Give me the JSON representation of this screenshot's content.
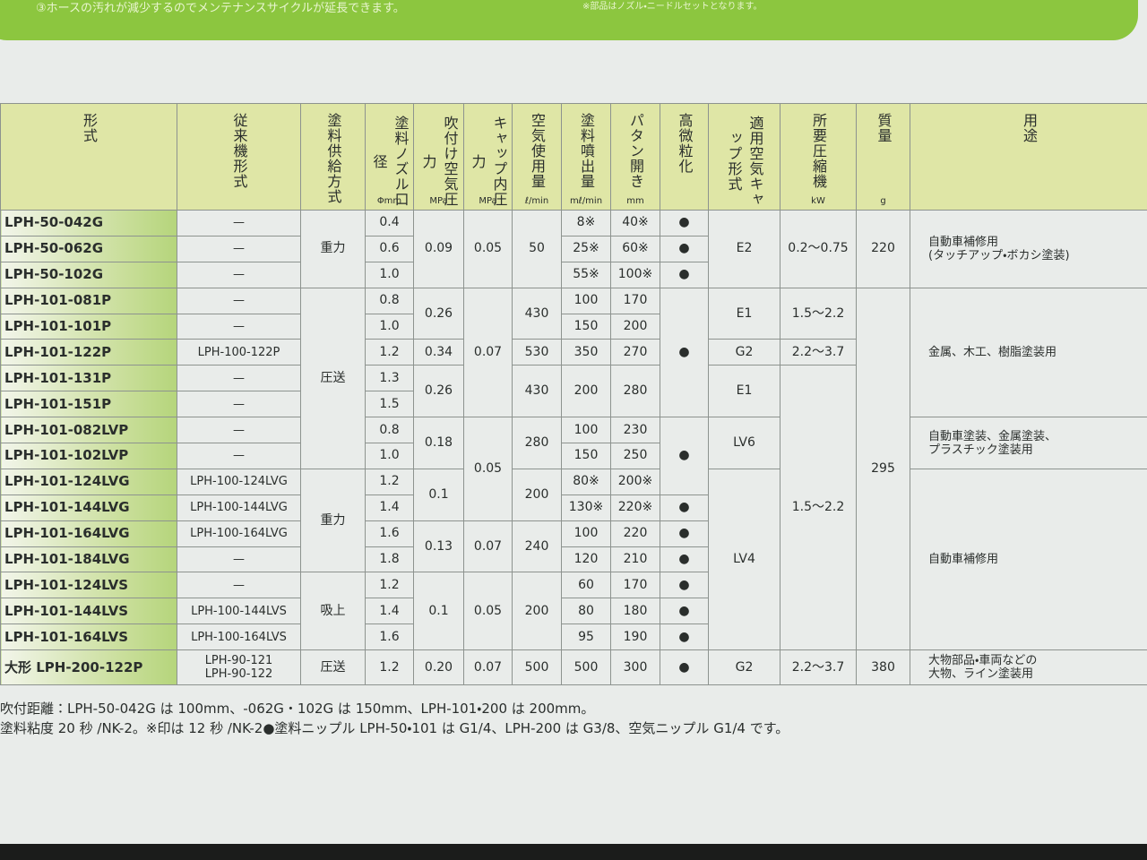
{
  "banner": {
    "left": "③ホースの汚れが減少するのでメンテナンスサイクルが延長できます。",
    "right": "※部品はノズル・ニードルセットとなります。"
  },
  "table": {
    "header": [
      {
        "name": "形式"
      },
      {
        "name": "従来機形式"
      },
      {
        "name": "塗料供給方式"
      },
      {
        "name": "塗料ノズル口径",
        "unit": "Φmm"
      },
      {
        "name": "吹付け空気圧力",
        "unit": "MPa"
      },
      {
        "name": "キャップ内圧力",
        "unit": "MPa"
      },
      {
        "name": "空気使用量",
        "unit": "ℓ/min"
      },
      {
        "name": "塗料噴出量",
        "unit": "mℓ/min"
      },
      {
        "name": "パタン開き",
        "unit": "mm"
      },
      {
        "name": "高微粒化"
      },
      {
        "name": "適用空気キャップ形式"
      },
      {
        "name": "所要圧縮機",
        "unit": "kW"
      },
      {
        "name": "質量",
        "unit": "g"
      },
      {
        "name": "用途"
      }
    ],
    "rows": [
      [
        "LPH-50-042G",
        "—",
        "重力",
        "0.4",
        "0.09",
        "0.05",
        "50",
        "8※",
        "40※",
        "●",
        "E2",
        "0.2〜0.75",
        "220",
        [
          "自動車補修用",
          "(タッチアップ・ボカシ塗装)"
        ]
      ],
      [
        "LPH-50-062G",
        "—",
        "0.6",
        "25※",
        "60※",
        "●"
      ],
      [
        "LPH-50-102G",
        "—",
        "1.0",
        "55※",
        "100※",
        "●"
      ],
      [
        "LPH-101-081P",
        "—",
        "圧送",
        "0.8",
        "0.26",
        "0.07",
        "430",
        "100",
        "170",
        "●",
        "E1",
        "1.5〜2.2",
        "295",
        "金属、木工、樹脂塗装用"
      ],
      [
        "LPH-101-101P",
        "—",
        "1.0",
        "150",
        "200"
      ],
      [
        "LPH-101-122P",
        "LPH-100-122P",
        "1.2",
        "0.34",
        "530",
        "350",
        "270",
        "G2",
        "2.2〜3.7"
      ],
      [
        "LPH-101-131P",
        "—",
        "1.3",
        "0.26",
        "430",
        "200",
        "280",
        "E1",
        "1.5〜2.2"
      ],
      [
        "LPH-101-151P",
        "—",
        "1.5"
      ],
      [
        "LPH-101-082LVP",
        "—",
        "0.8",
        "0.18",
        "0.05",
        "280",
        "100",
        "230",
        "●",
        "LV6",
        [
          "自動車塗装、金属塗装、",
          "プラスチック塗装用"
        ]
      ],
      [
        "LPH-101-102LVP",
        "—",
        "1.0",
        "150",
        "250"
      ],
      [
        "LPH-101-124LVG",
        "LPH-100-124LVG",
        "重力",
        "1.2",
        "0.1",
        "200",
        "80※",
        "200※",
        "LV4",
        "自動車補修用"
      ],
      [
        "LPH-101-144LVG",
        "LPH-100-144LVG",
        "1.4",
        "130※",
        "220※",
        "●"
      ],
      [
        "LPH-101-164LVG",
        "LPH-100-164LVG",
        "1.6",
        "0.13",
        "0.07",
        "240",
        "100",
        "220",
        "●"
      ],
      [
        "LPH-101-184LVG",
        "—",
        "1.8",
        "120",
        "210",
        "●"
      ],
      [
        "LPH-101-124LVS",
        "—",
        "吸上",
        "1.2",
        "0.1",
        "0.05",
        "200",
        "60",
        "170",
        "●"
      ],
      [
        "LPH-101-144LVS",
        "LPH-100-144LVS",
        "1.4",
        "80",
        "180",
        "●"
      ],
      [
        "LPH-101-164LVS",
        "LPH-100-164LVS",
        "1.6",
        "95",
        "190",
        "●"
      ],
      [
        "大形 LPH-200-122P",
        [
          "LPH-90-121",
          "LPH-90-122"
        ],
        "圧送",
        "1.2",
        "0.20",
        "0.07",
        "500",
        "500",
        "300",
        "●",
        "G2",
        "2.2〜3.7",
        "380",
        [
          "大物部品・車両などの",
          "大物、ライン塗装用"
        ]
      ]
    ]
  },
  "notes": [
    "吹付距離：LPH-50-042G は 100mm、-062G・102G は 150mm、LPH-101・200 は 200mm。",
    "塗料粘度 20 秒 /NK-2。※印は 12 秒 /NK-2●塗料ニップル LPH-50・101 は G1/4、LPH-200 は G3/8、空気ニップル G1/4 です。"
  ]
}
